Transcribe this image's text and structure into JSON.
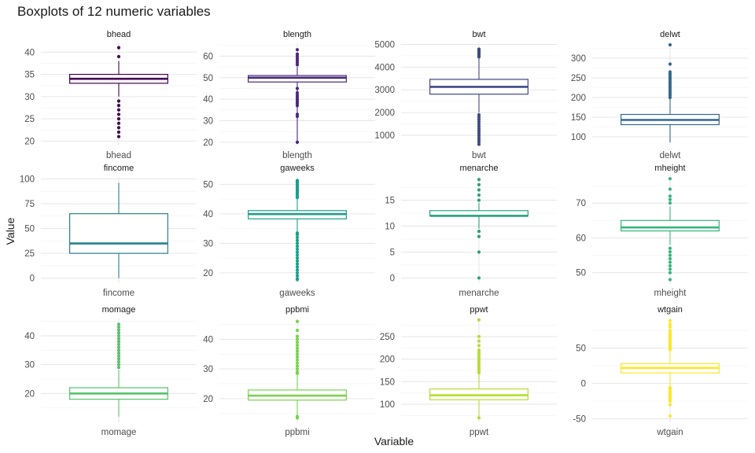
{
  "chart_data": {
    "type": "boxplot",
    "title": "Boxplots of 12 numeric variables",
    "xlabel": "Variable",
    "ylabel": "Value",
    "grid": true,
    "layout": "3 rows x 4 columns, free y scales",
    "panels": [
      {
        "name": "bhead",
        "color": "#440154",
        "ylim": [
          19,
          42
        ],
        "yticks": [
          20,
          25,
          30,
          35,
          40
        ],
        "box": {
          "min": 30,
          "q1": 33,
          "median": 34,
          "q3": 35,
          "max": 38
        },
        "outliers": [
          39,
          41,
          29,
          28,
          27,
          26,
          25,
          24,
          23,
          22,
          21
        ]
      },
      {
        "name": "blength",
        "color": "#482878",
        "ylim": [
          18.5,
          66
        ],
        "yticks": [
          20,
          30,
          40,
          50,
          60
        ],
        "box": {
          "min": 20,
          "q1": 48,
          "median": 50,
          "q3": 51,
          "max": 55
        },
        "outliers": [
          56,
          57,
          58,
          59,
          60,
          61,
          63,
          45,
          43,
          42,
          41,
          40,
          39,
          38,
          37,
          33,
          32,
          20
        ]
      },
      {
        "name": "bwt",
        "color": "#3e4a89",
        "ylim": [
          550,
          5050
        ],
        "yticks": [
          1000,
          2000,
          3000,
          4000,
          5000
        ],
        "box": {
          "min": 2000,
          "q1": 2810,
          "median": 3130,
          "q3": 3460,
          "max": 4420
        },
        "outliers": [
          4450,
          4500,
          4550,
          4600,
          4650,
          4700,
          4750,
          4790,
          1900,
          1800,
          1700,
          1600,
          1500,
          1400,
          1300,
          1200,
          1100,
          1000,
          900,
          800,
          700,
          600
        ]
      },
      {
        "name": "delwt",
        "color": "#31688e",
        "ylim": [
          78,
          338
        ],
        "yticks": [
          100,
          150,
          200,
          250,
          300
        ],
        "box": {
          "min": 86,
          "q1": 131,
          "median": 143,
          "q3": 157,
          "max": 196
        },
        "outliers": [
          200,
          205,
          210,
          215,
          220,
          225,
          230,
          235,
          240,
          245,
          250,
          255,
          260,
          265,
          285,
          334
        ]
      },
      {
        "name": "fincome",
        "color": "#26828e",
        "ylim": [
          -5,
          102
        ],
        "yticks": [
          0,
          25,
          50,
          75,
          100
        ],
        "box": {
          "min": 0,
          "q1": 25,
          "median": 35,
          "q3": 65,
          "max": 96
        },
        "outliers": []
      },
      {
        "name": "gaweeks",
        "color": "#1f9e89",
        "ylim": [
          16.5,
          52.5
        ],
        "yticks": [
          20,
          30,
          40,
          50
        ],
        "box": {
          "min": 34,
          "q1": 38.3,
          "median": 39.9,
          "q3": 41.1,
          "max": 45
        },
        "outliers": [
          45.5,
          46,
          46.5,
          47,
          47.5,
          48,
          48.5,
          49,
          49.5,
          50,
          50.5,
          51,
          51.3,
          33.5,
          33,
          32,
          31,
          30,
          29,
          28,
          27,
          26,
          25,
          24,
          23,
          22,
          21,
          20,
          19,
          18,
          17.7
        ]
      },
      {
        "name": "menarche",
        "color": "#26a37a",
        "ylim": [
          -1,
          19.5
        ],
        "yticks": [
          0,
          5,
          10,
          15
        ],
        "box": {
          "min": 9.5,
          "q1": 12,
          "median": 12,
          "q3": 13,
          "max": 14.5
        },
        "outliers": [
          15,
          16,
          17,
          18,
          19,
          9,
          8,
          5,
          0
        ]
      },
      {
        "name": "mheight",
        "color": "#35b779",
        "ylim": [
          47,
          77.5
        ],
        "yticks": [
          50,
          60,
          70
        ],
        "box": {
          "min": 58,
          "q1": 62,
          "median": 63,
          "q3": 65,
          "max": 69
        },
        "outliers": [
          70,
          71,
          72,
          74,
          77,
          57,
          56,
          55,
          54,
          53,
          52,
          51,
          50,
          48
        ]
      },
      {
        "name": "momage",
        "color": "#54c568",
        "ylim": [
          10,
          46
        ],
        "yticks": [
          20,
          30,
          40
        ],
        "box": {
          "min": 12,
          "q1": 18,
          "median": 20,
          "q3": 22,
          "max": 28
        },
        "outliers": [
          29,
          30,
          31,
          32,
          33,
          34,
          35,
          36,
          37,
          38,
          39,
          40,
          41,
          42,
          43,
          44
        ]
      },
      {
        "name": "ppbmi",
        "color": "#7ad151",
        "ylim": [
          12,
          47
        ],
        "yticks": [
          20,
          30,
          40
        ],
        "box": {
          "min": 13.1,
          "q1": 19.5,
          "median": 21,
          "q3": 22.9,
          "max": 28
        },
        "outliers": [
          28.5,
          29,
          30,
          31,
          32,
          33,
          34,
          35,
          36,
          37,
          38,
          39,
          40,
          41,
          43,
          46,
          14,
          13.5
        ]
      },
      {
        "name": "ppwt",
        "color": "#b5de2b",
        "ylim": [
          60,
          290
        ],
        "yticks": [
          100,
          150,
          200,
          250
        ],
        "box": {
          "min": 70,
          "q1": 110,
          "median": 120,
          "q3": 134,
          "max": 168
        },
        "outliers": [
          170,
          175,
          180,
          185,
          190,
          195,
          200,
          205,
          210,
          215,
          220,
          230,
          240,
          250,
          287,
          70
        ]
      },
      {
        "name": "wtgain",
        "color": "#fde725",
        "ylim": [
          -55,
          92
        ],
        "yticks": [
          -50,
          0,
          50
        ],
        "box": {
          "min": -5,
          "q1": 15,
          "median": 22,
          "q3": 28,
          "max": 47
        },
        "outliers": [
          48,
          50,
          52,
          54,
          56,
          58,
          60,
          62,
          64,
          66,
          68,
          70,
          72,
          75,
          80,
          84,
          89,
          -6,
          -8,
          -10,
          -12,
          -14,
          -16,
          -18,
          -20,
          -22,
          -25,
          -30,
          -46
        ]
      }
    ]
  }
}
